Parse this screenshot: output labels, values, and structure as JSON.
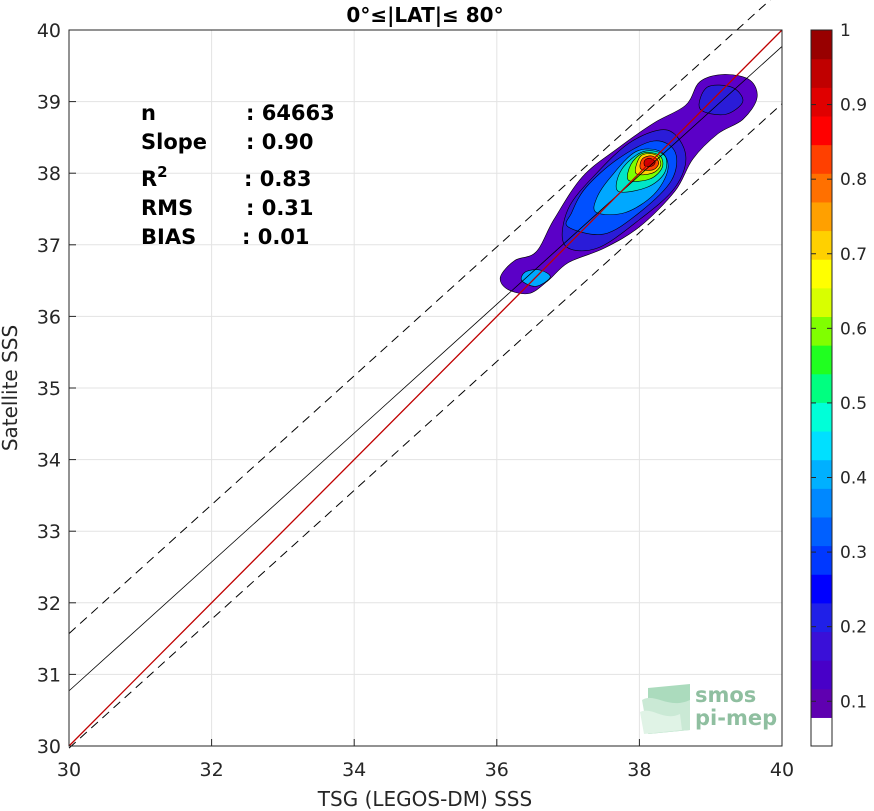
{
  "chart_data": {
    "type": "scatter",
    "title": "0°≤|LAT|≤ 80°",
    "xlabel": "TSG (LEGOS-DM) SSS",
    "ylabel": "Satellite SSS",
    "xlim": [
      30,
      40
    ],
    "ylim": [
      30,
      40
    ],
    "xticks": [
      "30",
      "32",
      "34",
      "36",
      "38",
      "40"
    ],
    "yticks": [
      "30",
      "31",
      "32",
      "33",
      "34",
      "35",
      "36",
      "37",
      "38",
      "39",
      "40"
    ],
    "grid": true,
    "stats": [
      {
        "label": "n",
        "value": ": 64663"
      },
      {
        "label": "Slope",
        "value": ": 0.90"
      },
      {
        "label": "R",
        "sup": "2",
        "value": ": 0.83"
      },
      {
        "label": "RMS",
        "value": ": 0.31"
      },
      {
        "label": "BIAS",
        "value": ": 0.01"
      }
    ],
    "lines": {
      "identity": {
        "points": [
          [
            30,
            30
          ],
          [
            40,
            40
          ]
        ],
        "color": "#c00000"
      },
      "fit": {
        "points": [
          [
            30,
            30.77
          ],
          [
            40,
            39.77
          ]
        ],
        "color": "#000000"
      },
      "fit_upper": {
        "points": [
          [
            30,
            31.57
          ],
          [
            40,
            40.57
          ]
        ],
        "dashed": true
      },
      "fit_lower": {
        "points": [
          [
            30,
            29.97
          ],
          [
            40,
            38.97
          ]
        ],
        "dashed": true
      }
    },
    "density_contours": [
      {
        "level": 0.05,
        "color": "#5b00c7",
        "points": [
          [
            36.05,
            36.55
          ],
          [
            36.15,
            36.38
          ],
          [
            36.45,
            36.32
          ],
          [
            36.72,
            36.5
          ],
          [
            37.0,
            36.75
          ],
          [
            37.5,
            36.95
          ],
          [
            38.0,
            37.25
          ],
          [
            38.5,
            37.75
          ],
          [
            38.75,
            38.2
          ],
          [
            39.1,
            38.55
          ],
          [
            39.45,
            38.75
          ],
          [
            39.65,
            39.05
          ],
          [
            39.55,
            39.3
          ],
          [
            39.2,
            39.38
          ],
          [
            38.85,
            39.28
          ],
          [
            38.65,
            38.95
          ],
          [
            38.2,
            38.7
          ],
          [
            37.7,
            38.35
          ],
          [
            37.2,
            37.95
          ],
          [
            36.8,
            37.35
          ],
          [
            36.55,
            36.9
          ],
          [
            36.25,
            36.78
          ]
        ]
      },
      {
        "level": 0.1,
        "color": "#2a1cd8",
        "points": [
          [
            36.95,
            37.0
          ],
          [
            37.4,
            36.95
          ],
          [
            38.0,
            37.35
          ],
          [
            38.5,
            37.8
          ],
          [
            38.65,
            38.25
          ],
          [
            38.4,
            38.6
          ],
          [
            37.9,
            38.45
          ],
          [
            37.4,
            38.0
          ],
          [
            37.0,
            37.5
          ]
        ]
      },
      {
        "level": 0.1,
        "color": "#2a1cd8",
        "points": [
          [
            38.85,
            38.9
          ],
          [
            39.2,
            38.82
          ],
          [
            39.45,
            39.0
          ],
          [
            39.3,
            39.2
          ],
          [
            38.95,
            39.2
          ]
        ]
      },
      {
        "level": 0.15,
        "color": "#0050ff",
        "points": [
          [
            37.0,
            37.25
          ],
          [
            37.5,
            37.15
          ],
          [
            38.0,
            37.45
          ],
          [
            38.45,
            37.9
          ],
          [
            38.5,
            38.3
          ],
          [
            38.2,
            38.45
          ],
          [
            37.7,
            38.2
          ],
          [
            37.25,
            37.8
          ],
          [
            37.05,
            37.45
          ]
        ]
      },
      {
        "level": 0.3,
        "color": "#00a8ff",
        "points": [
          [
            36.35,
            36.5
          ],
          [
            36.55,
            36.42
          ],
          [
            36.75,
            36.55
          ],
          [
            36.6,
            36.65
          ],
          [
            36.4,
            36.62
          ]
        ]
      },
      {
        "level": 0.3,
        "color": "#00a8ff",
        "points": [
          [
            37.4,
            37.45
          ],
          [
            37.8,
            37.45
          ],
          [
            38.2,
            37.7
          ],
          [
            38.4,
            38.05
          ],
          [
            38.3,
            38.3
          ],
          [
            37.95,
            38.3
          ],
          [
            37.6,
            37.95
          ],
          [
            37.4,
            37.65
          ]
        ]
      },
      {
        "level": 0.4,
        "color": "#00e5c8",
        "points": [
          [
            37.7,
            37.75
          ],
          [
            38.1,
            37.8
          ],
          [
            38.35,
            38.0
          ],
          [
            38.35,
            38.25
          ],
          [
            38.05,
            38.3
          ],
          [
            37.75,
            38.05
          ]
        ]
      },
      {
        "level": 0.55,
        "color": "#7cff00",
        "points": [
          [
            37.85,
            37.9
          ],
          [
            38.15,
            37.92
          ],
          [
            38.32,
            38.08
          ],
          [
            38.28,
            38.25
          ],
          [
            38.05,
            38.28
          ],
          [
            37.88,
            38.12
          ]
        ]
      },
      {
        "level": 0.7,
        "color": "#ffd000",
        "points": [
          [
            37.95,
            38.0
          ],
          [
            38.18,
            38.0
          ],
          [
            38.3,
            38.12
          ],
          [
            38.22,
            38.26
          ],
          [
            38.02,
            38.24
          ]
        ]
      },
      {
        "level": 0.85,
        "color": "#ff4000",
        "points": [
          [
            38.02,
            38.06
          ],
          [
            38.2,
            38.05
          ],
          [
            38.27,
            38.15
          ],
          [
            38.18,
            38.24
          ],
          [
            38.04,
            38.2
          ]
        ]
      },
      {
        "level": 0.95,
        "color": "#d40000",
        "points": [
          [
            38.08,
            38.1
          ],
          [
            38.18,
            38.1
          ],
          [
            38.22,
            38.16
          ],
          [
            38.14,
            38.21
          ],
          [
            38.07,
            38.17
          ]
        ]
      }
    ],
    "colorbar": {
      "ticks": [
        "0.1",
        "0.2",
        "0.3",
        "0.4",
        "0.5",
        "0.6",
        "0.7",
        "0.8",
        "0.9",
        "1"
      ],
      "colors": [
        "#ffffff",
        "#5f00b0",
        "#4800c8",
        "#3a10d8",
        "#2020e8",
        "#0000ff",
        "#0038ff",
        "#0060ff",
        "#0088ff",
        "#00b0ff",
        "#00e0ff",
        "#00ffd8",
        "#00ff80",
        "#20ff20",
        "#80ff00",
        "#d8ff00",
        "#ffff00",
        "#ffd000",
        "#ffa000",
        "#ff7000",
        "#ff4000",
        "#ff0000",
        "#e00000",
        "#c00000",
        "#980000"
      ]
    }
  },
  "logo": {
    "line1": "smos",
    "line2": "pi-mep"
  }
}
